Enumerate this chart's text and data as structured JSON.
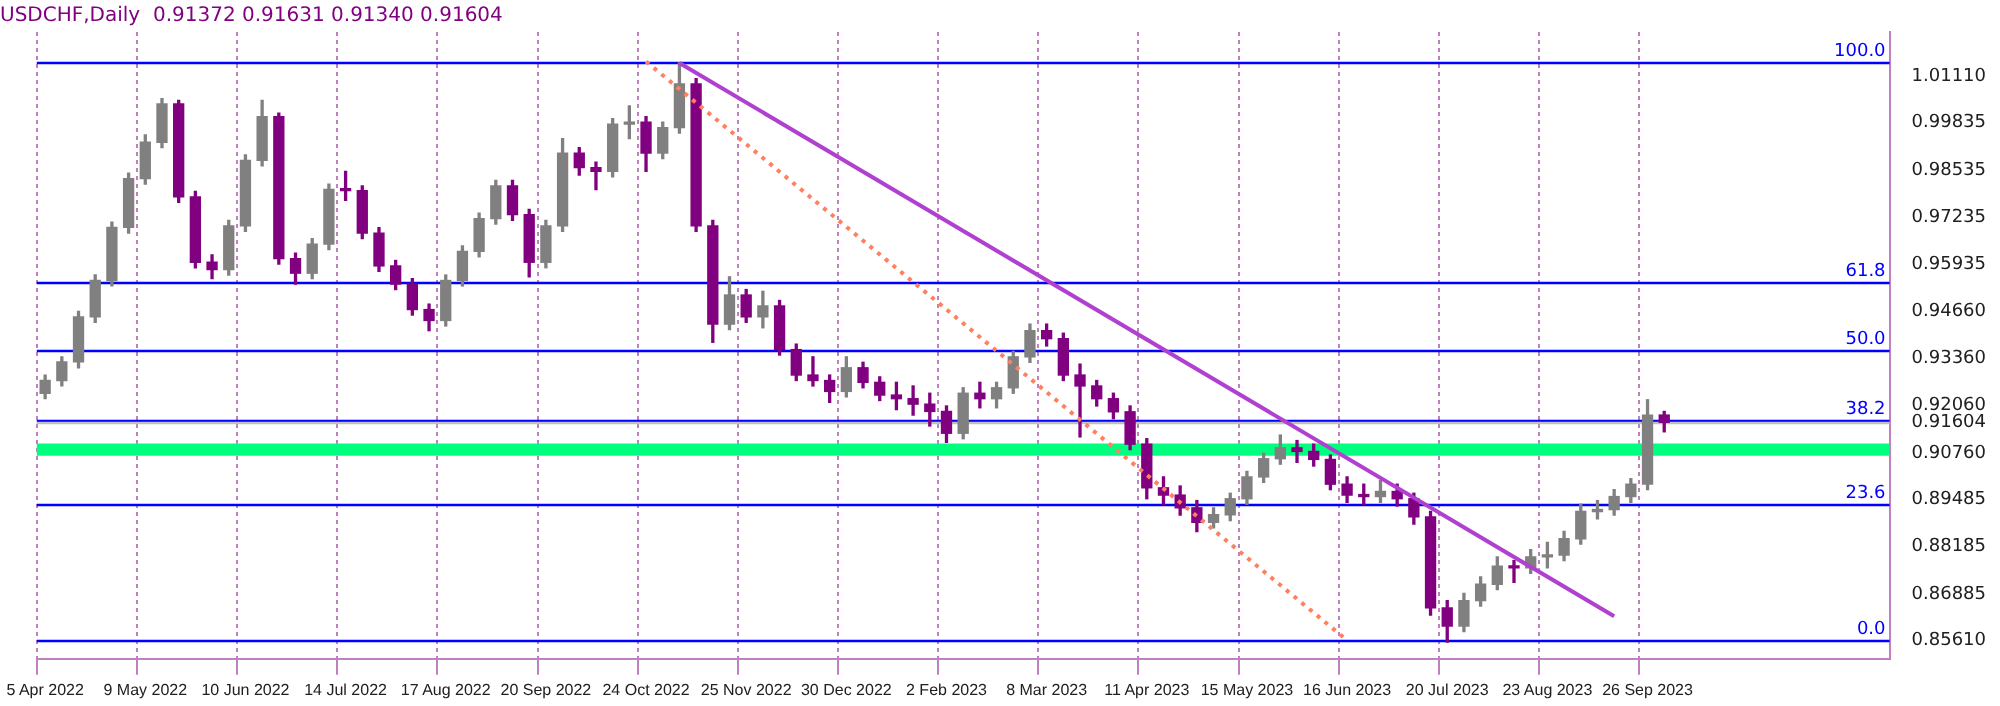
{
  "chart_data": {
    "type": "candlestick",
    "title": "USDCHF,Daily  0.91372 0.91631 0.91340 0.91604",
    "categories": [
      "5 Apr 2022",
      null,
      null,
      null,
      null,
      null,
      "9 May 2022",
      null,
      null,
      null,
      null,
      null,
      "10 Jun 2022",
      null,
      null,
      null,
      null,
      null,
      "14 Jul 2022",
      null,
      null,
      null,
      null,
      null,
      "17 Aug 2022",
      null,
      null,
      null,
      null,
      null,
      "20 Sep 2022",
      null,
      null,
      null,
      null,
      null,
      "24 Oct 2022",
      null,
      null,
      null,
      null,
      null,
      "25 Nov 2022",
      null,
      null,
      null,
      null,
      null,
      "30 Dec 2022",
      null,
      null,
      null,
      null,
      null,
      "2 Feb 2023",
      null,
      null,
      null,
      null,
      null,
      "8 Mar 2023",
      null,
      null,
      null,
      null,
      null,
      "11 Apr 2023",
      null,
      null,
      null,
      null,
      null,
      "15 May 2023",
      null,
      null,
      null,
      null,
      null,
      "16 Jun 2023",
      null,
      null,
      null,
      null,
      null,
      "20 Jul 2023",
      null,
      null,
      null,
      null,
      null,
      "23 Aug 2023",
      null,
      null,
      null,
      null,
      null,
      "26 Sep 2023",
      null,
      null,
      null,
      null,
      null,
      null,
      null,
      null,
      null,
      null,
      null,
      null,
      null,
      null
    ],
    "ohlc": [
      [
        0.924,
        0.929,
        0.9225,
        0.9275
      ],
      [
        0.9275,
        0.934,
        0.926,
        0.9326
      ],
      [
        0.9326,
        0.9465,
        0.931,
        0.945
      ],
      [
        0.945,
        0.9565,
        0.9435,
        0.955
      ],
      [
        0.955,
        0.971,
        0.9535,
        0.9696
      ],
      [
        0.9696,
        0.9845,
        0.968,
        0.983
      ],
      [
        0.983,
        0.995,
        0.9815,
        0.993
      ],
      [
        0.993,
        1.005,
        0.9915,
        1.0035
      ],
      [
        1.0035,
        1.0045,
        0.9765,
        0.978
      ],
      [
        0.978,
        0.9795,
        0.9585,
        0.96
      ],
      [
        0.96,
        0.962,
        0.9555,
        0.958
      ],
      [
        0.958,
        0.9715,
        0.9565,
        0.97
      ],
      [
        0.97,
        0.9895,
        0.9685,
        0.988
      ],
      [
        0.988,
        1.0045,
        0.9865,
        1.0
      ],
      [
        1.0,
        1.001,
        0.9595,
        0.961
      ],
      [
        0.961,
        0.9625,
        0.954,
        0.957
      ],
      [
        0.957,
        0.9665,
        0.9555,
        0.965
      ],
      [
        0.965,
        0.9815,
        0.9635,
        0.98
      ],
      [
        0.98,
        0.985,
        0.977,
        0.9797
      ],
      [
        0.9797,
        0.981,
        0.9665,
        0.968
      ],
      [
        0.968,
        0.9695,
        0.9575,
        0.959
      ],
      [
        0.959,
        0.9605,
        0.9525,
        0.954
      ],
      [
        0.954,
        0.9555,
        0.9455,
        0.947
      ],
      [
        0.947,
        0.9485,
        0.9412,
        0.944
      ],
      [
        0.944,
        0.9565,
        0.9425,
        0.955
      ],
      [
        0.955,
        0.9645,
        0.9535,
        0.963
      ],
      [
        0.963,
        0.9735,
        0.9615,
        0.972
      ],
      [
        0.972,
        0.9825,
        0.9705,
        0.981
      ],
      [
        0.981,
        0.9825,
        0.9715,
        0.9731
      ],
      [
        0.9731,
        0.9745,
        0.956,
        0.96
      ],
      [
        0.96,
        0.9715,
        0.9585,
        0.97
      ],
      [
        0.97,
        0.994,
        0.9685,
        0.99
      ],
      [
        0.99,
        0.9915,
        0.984,
        0.986
      ],
      [
        0.986,
        0.9875,
        0.98,
        0.985
      ],
      [
        0.985,
        0.9995,
        0.9835,
        0.998
      ],
      [
        0.998,
        1.003,
        0.994,
        0.9985
      ],
      [
        0.9985,
        1.0,
        0.985,
        0.99
      ],
      [
        0.99,
        0.9985,
        0.9885,
        0.997
      ],
      [
        0.997,
        1.0148,
        0.9955,
        1.009
      ],
      [
        1.009,
        1.0105,
        0.9685,
        0.97
      ],
      [
        0.97,
        0.9715,
        0.938,
        0.943
      ],
      [
        0.943,
        0.956,
        0.9415,
        0.951
      ],
      [
        0.951,
        0.9525,
        0.9435,
        0.945
      ],
      [
        0.945,
        0.952,
        0.942,
        0.948
      ],
      [
        0.948,
        0.9495,
        0.9345,
        0.936
      ],
      [
        0.936,
        0.9375,
        0.9275,
        0.929
      ],
      [
        0.929,
        0.934,
        0.926,
        0.9275
      ],
      [
        0.9275,
        0.929,
        0.9215,
        0.9245
      ],
      [
        0.9245,
        0.934,
        0.923,
        0.931
      ],
      [
        0.931,
        0.9325,
        0.9255,
        0.927
      ],
      [
        0.927,
        0.9285,
        0.922,
        0.9235
      ],
      [
        0.9235,
        0.927,
        0.9195,
        0.9225
      ],
      [
        0.9225,
        0.926,
        0.918,
        0.921
      ],
      [
        0.921,
        0.924,
        0.915,
        0.919
      ],
      [
        0.919,
        0.9205,
        0.9105,
        0.913
      ],
      [
        0.913,
        0.9255,
        0.9115,
        0.924
      ],
      [
        0.924,
        0.927,
        0.92,
        0.9225
      ],
      [
        0.9225,
        0.927,
        0.92,
        0.9255
      ],
      [
        0.9255,
        0.9355,
        0.924,
        0.934
      ],
      [
        0.934,
        0.943,
        0.9325,
        0.9412
      ],
      [
        0.9412,
        0.943,
        0.937,
        0.939
      ],
      [
        0.939,
        0.9405,
        0.9275,
        0.929
      ],
      [
        0.929,
        0.932,
        0.912,
        0.926
      ],
      [
        0.926,
        0.9275,
        0.9205,
        0.9225
      ],
      [
        0.9225,
        0.924,
        0.917,
        0.9189
      ],
      [
        0.9189,
        0.9205,
        0.9085,
        0.91
      ],
      [
        0.91,
        0.9115,
        0.895,
        0.898
      ],
      [
        0.898,
        0.901,
        0.8935,
        0.896
      ],
      [
        0.896,
        0.8985,
        0.8905,
        0.8925
      ],
      [
        0.8925,
        0.8945,
        0.886,
        0.8885
      ],
      [
        0.8885,
        0.8925,
        0.887,
        0.8906
      ],
      [
        0.8906,
        0.8965,
        0.889,
        0.895
      ],
      [
        0.895,
        0.9025,
        0.8935,
        0.901
      ],
      [
        0.901,
        0.9075,
        0.8995,
        0.906
      ],
      [
        0.906,
        0.9125,
        0.9045,
        0.909
      ],
      [
        0.909,
        0.911,
        0.905,
        0.908
      ],
      [
        0.908,
        0.91,
        0.904,
        0.9058
      ],
      [
        0.9058,
        0.907,
        0.8975,
        0.899
      ],
      [
        0.899,
        0.901,
        0.894,
        0.896
      ],
      [
        0.896,
        0.899,
        0.8935,
        0.8956
      ],
      [
        0.8956,
        0.9,
        0.894,
        0.897
      ],
      [
        0.897,
        0.899,
        0.893,
        0.895
      ],
      [
        0.895,
        0.8965,
        0.888,
        0.89
      ],
      [
        0.89,
        0.8915,
        0.863,
        0.865
      ],
      [
        0.865,
        0.867,
        0.8556,
        0.86
      ],
      [
        0.86,
        0.869,
        0.8585,
        0.867
      ],
      [
        0.867,
        0.8735,
        0.8655,
        0.8715
      ],
      [
        0.8715,
        0.879,
        0.87,
        0.8765
      ],
      [
        0.8765,
        0.878,
        0.872,
        0.876
      ],
      [
        0.876,
        0.881,
        0.8745,
        0.879
      ],
      [
        0.879,
        0.883,
        0.876,
        0.8795
      ],
      [
        0.8795,
        0.886,
        0.878,
        0.884
      ],
      [
        0.884,
        0.8935,
        0.8825,
        0.8915
      ],
      [
        0.8915,
        0.8945,
        0.8895,
        0.892
      ],
      [
        0.892,
        0.8975,
        0.8905,
        0.8956
      ],
      [
        0.8956,
        0.9005,
        0.894,
        0.899
      ],
      [
        0.899,
        0.9222,
        0.8975,
        0.918
      ],
      [
        0.918,
        0.919,
        0.9134,
        0.916
      ],
      null,
      null,
      null,
      null,
      null,
      null,
      null,
      null,
      null,
      null,
      null,
      null,
      null
    ],
    "colors": [
      "#808080",
      "#808080",
      "#808080",
      "#808080",
      "#808080",
      "#808080",
      "#808080",
      "#808080",
      "#800080",
      "#800080",
      "#800080",
      "#808080",
      "#808080",
      "#808080",
      "#800080",
      "#800080",
      "#808080",
      "#808080",
      "#800080",
      "#800080",
      "#800080",
      "#800080",
      "#800080",
      "#800080",
      "#808080",
      "#808080",
      "#808080",
      "#808080",
      "#800080",
      "#800080",
      "#808080",
      "#808080",
      "#800080",
      "#800080",
      "#808080",
      "#808080",
      "#800080",
      "#808080",
      "#808080",
      "#800080",
      "#800080",
      "#808080",
      "#800080",
      "#808080",
      "#800080",
      "#800080",
      "#800080",
      "#800080",
      "#808080",
      "#800080",
      "#800080",
      "#800080",
      "#800080",
      "#800080",
      "#800080",
      "#808080",
      "#800080",
      "#808080",
      "#808080",
      "#808080",
      "#800080",
      "#800080",
      "#800080",
      "#800080",
      "#800080",
      "#800080",
      "#800080",
      "#800080",
      "#800080",
      "#800080",
      "#808080",
      "#808080",
      "#808080",
      "#808080",
      "#808080",
      "#800080",
      "#800080",
      "#800080",
      "#800080",
      "#800080",
      "#808080",
      "#800080",
      "#800080",
      "#800080",
      "#800080",
      "#808080",
      "#808080",
      "#808080",
      "#800080",
      "#808080",
      "#808080",
      "#808080",
      "#808080",
      "#808080",
      "#808080",
      "#808080",
      "#808080",
      "#800080",
      null,
      null,
      null,
      null,
      null,
      null,
      null,
      null,
      null,
      null,
      null,
      null,
      null
    ],
    "series": [
      {
        "type": "line",
        "color": "#b040d0",
        "line_style": "solid",
        "values": [
          null,
          null,
          null,
          null,
          null,
          null,
          null,
          null,
          null,
          null,
          null,
          null,
          null,
          null,
          null,
          null,
          null,
          null,
          null,
          null,
          null,
          null,
          null,
          null,
          null,
          null,
          null,
          null,
          null,
          null,
          null,
          null,
          null,
          null,
          null,
          null,
          null,
          null,
          1.0148,
          null,
          null,
          null,
          null,
          null,
          null,
          null,
          null,
          null,
          null,
          null,
          null,
          null,
          null,
          null,
          null,
          null,
          null,
          null,
          null,
          null,
          null,
          null,
          null,
          null,
          null,
          null,
          null,
          null,
          null,
          null,
          null,
          null,
          null,
          null,
          null,
          null,
          null,
          null,
          null,
          null,
          null,
          null,
          null,
          null,
          null,
          null,
          null,
          null,
          null,
          null,
          null,
          null,
          null,
          null,
          0.8627,
          null,
          null,
          null,
          null,
          null,
          null,
          null,
          null,
          null,
          null,
          null,
          null,
          null,
          null,
          null,
          null
        ]
      },
      {
        "type": "line",
        "color": "#ff8060",
        "line_style": "dotted",
        "values": [
          null,
          null,
          null,
          null,
          null,
          null,
          null,
          null,
          null,
          null,
          null,
          null,
          null,
          null,
          null,
          null,
          null,
          null,
          null,
          null,
          null,
          null,
          null,
          null,
          null,
          null,
          null,
          null,
          null,
          null,
          null,
          null,
          null,
          null,
          null,
          null,
          1.0152,
          null,
          null,
          null,
          null,
          null,
          null,
          null,
          null,
          null,
          null,
          null,
          null,
          null,
          null,
          null,
          null,
          null,
          null,
          null,
          null,
          null,
          null,
          null,
          null,
          null,
          null,
          null,
          null,
          null,
          null,
          null,
          null,
          null,
          null,
          null,
          null,
          null,
          null,
          null,
          null,
          null,
          0.8561,
          null,
          null,
          null,
          null,
          null,
          null,
          null,
          null,
          null,
          null,
          null,
          null,
          null,
          null,
          null,
          null,
          null,
          null,
          null,
          null,
          null,
          null,
          null,
          null,
          null,
          null,
          null,
          null,
          null,
          null,
          null,
          null
        ]
      }
    ],
    "ylim": [
      0.851,
      1.0233
    ],
    "yticks": [
      {
        "value": 1.0111,
        "label": "1.01110"
      },
      {
        "value": 0.99835,
        "label": "0.99835"
      },
      {
        "value": 0.98535,
        "label": "0.98535"
      },
      {
        "value": 0.97235,
        "label": "0.97235"
      },
      {
        "value": 0.95935,
        "label": "0.95935"
      },
      {
        "value": 0.9466,
        "label": "0.94660"
      },
      {
        "value": 0.9336,
        "label": "0.93360"
      },
      {
        "value": 0.9206,
        "label": "0.92060"
      },
      {
        "value": 0.91604,
        "label": "0.91604"
      },
      {
        "value": 0.9076,
        "label": "0.90760"
      },
      {
        "value": 0.89485,
        "label": "0.89485"
      },
      {
        "value": 0.88185,
        "label": "0.88185"
      },
      {
        "value": 0.86885,
        "label": "0.86885"
      },
      {
        "value": 0.8561,
        "label": "0.85610"
      }
    ],
    "annotations": [
      {
        "text": "100.0",
        "y": 1.0152
      },
      {
        "text": "61.8",
        "y": 0.9544
      },
      {
        "text": "50.0",
        "y": 0.9357
      },
      {
        "text": "38.2",
        "y": 0.9169
      },
      {
        "text": "23.6",
        "y": 0.8936
      },
      {
        "text": "0.0",
        "y": 0.8561
      }
    ],
    "ref_lines": [
      {
        "axis": "y",
        "value": 1.0152,
        "color": "#0000ff"
      },
      {
        "axis": "y",
        "value": 0.9544,
        "color": "#0000ff"
      },
      {
        "axis": "y",
        "value": 0.9357,
        "color": "#0000ff"
      },
      {
        "axis": "y",
        "value": 0.9169,
        "color": "#0000ff"
      },
      {
        "axis": "y",
        "value": 0.8936,
        "color": "#0000ff"
      },
      {
        "axis": "y",
        "value": 0.8561,
        "color": "#0000ff"
      },
      {
        "axis": "y",
        "value": 0.91604,
        "color": "#c0c0c0"
      }
    ],
    "bands": [
      {
        "axis": "y",
        "from": 0.9068,
        "to": 0.9102,
        "color": "#00ff7f"
      }
    ],
    "grid": "x",
    "legend": false
  }
}
